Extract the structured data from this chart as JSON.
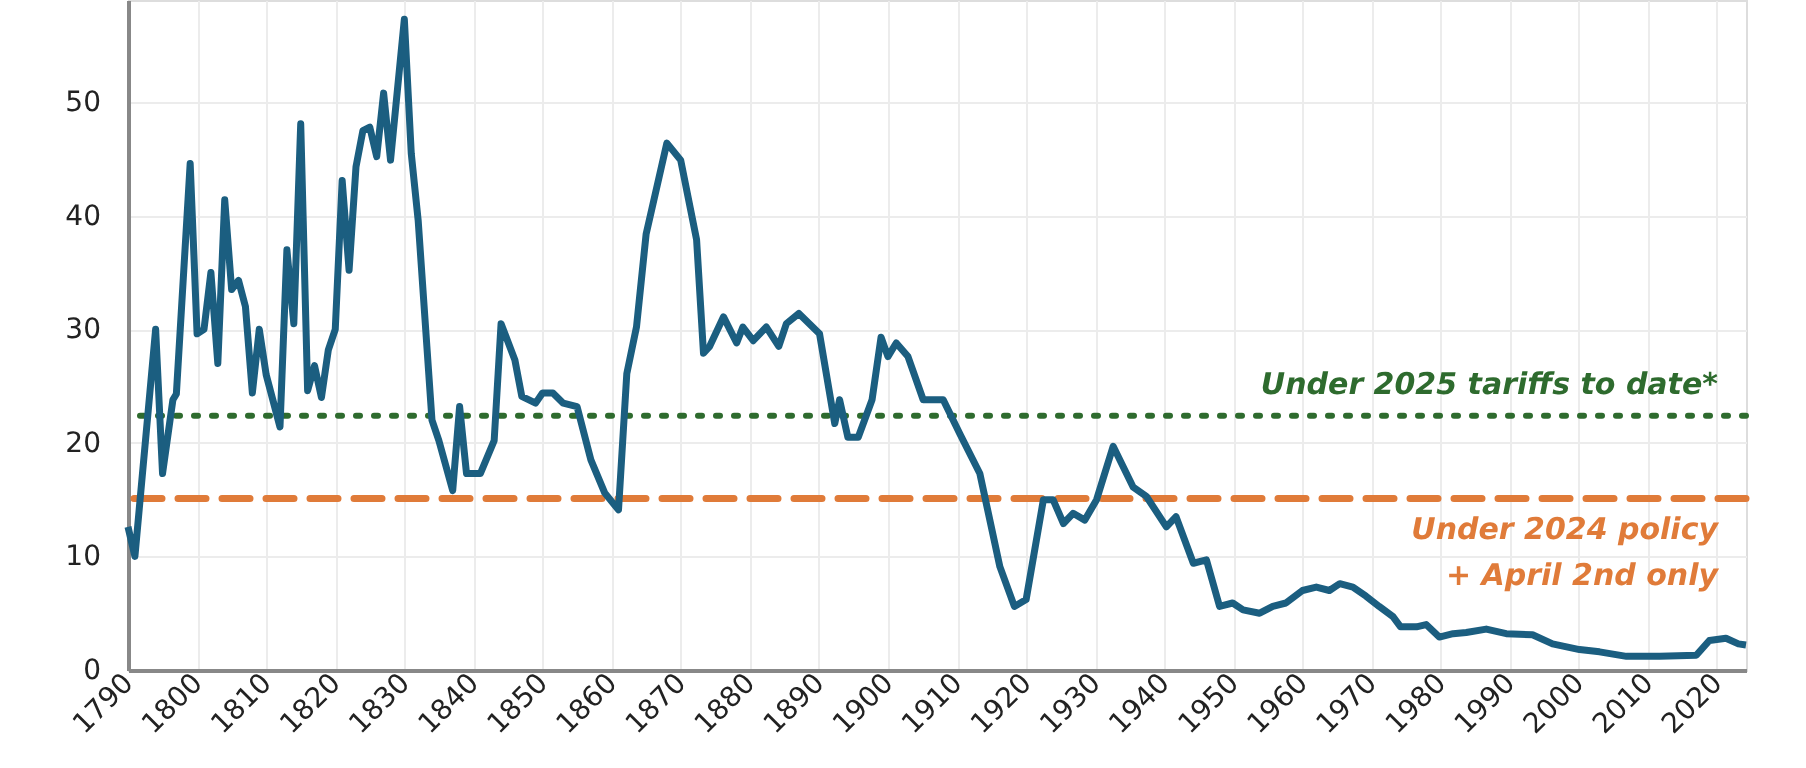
{
  "chart_data": {
    "type": "line",
    "x": [
      1790,
      1791,
      1794,
      1795,
      1796.5,
      1797,
      1799,
      1800,
      1801,
      1802,
      1803,
      1804,
      1805,
      1806,
      1807,
      1808,
      1809,
      1810,
      1812,
      1813,
      1814,
      1815,
      1816,
      1817,
      1818,
      1819,
      1820,
      1821,
      1822,
      1823,
      1824,
      1825,
      1826,
      1827,
      1828,
      1830,
      1831,
      1832,
      1834,
      1835,
      1837,
      1838,
      1839,
      1841,
      1843,
      1844,
      1846,
      1847,
      1849,
      1850,
      1851.5,
      1853,
      1855,
      1857,
      1859,
      1861,
      1862.2,
      1863.6,
      1865,
      1868,
      1870,
      1872.3,
      1873.3,
      1874.2,
      1876.2,
      1878.1,
      1879,
      1880.5,
      1882.4,
      1884.2,
      1885.3,
      1887.1,
      1890.1,
      1892.3,
      1893,
      1894.2,
      1895.7,
      1897.7,
      1899,
      1900,
      1901.2,
      1902.9,
      1905.1,
      1906.3,
      1908,
      1910.4,
      1913.3,
      1916.2,
      1918.3,
      1920,
      1922.5,
      1923.9,
      1925.4,
      1926.8,
      1928.5,
      1930.2,
      1932.6,
      1935.5,
      1937.4,
      1940.3,
      1941.7,
      1944.2,
      1946.1,
      1948,
      1949.9,
      1951.4,
      1953.8,
      1955.7,
      1957.6,
      1960,
      1962,
      1963.9,
      1965.4,
      1967.3,
      1969.2,
      1971.1,
      1973.1,
      1974.2,
      1976.5,
      1977.9,
      1979.8,
      1981.8,
      1983.7,
      1986.6,
      1989.5,
      1993.3,
      1996.2,
      2000.1,
      2003,
      2006.9,
      2011.7,
      2017,
      2018.9,
      2021.3,
      2023.1,
      2024.2
    ],
    "series": [
      {
        "color": "#1b5e80",
        "values": [
          12.6,
          10,
          30,
          17.3,
          23.8,
          24.3,
          44.6,
          29.6,
          30,
          35,
          27,
          41.4,
          33.5,
          34.3,
          32,
          24.4,
          30,
          26,
          21.4,
          37,
          30.5,
          48.1,
          24.6,
          26.8,
          24,
          28.2,
          30,
          43.1,
          35.2,
          44.3,
          47.5,
          47.8,
          45.2,
          50.8,
          44.9,
          57.3,
          45.5,
          39.6,
          22,
          20.2,
          15.8,
          23.2,
          17.3,
          17.3,
          20.2,
          30.5,
          27.3,
          24.1,
          23.5,
          24.4,
          24.4,
          23.5,
          23.2,
          18.5,
          15.6,
          14.1,
          26.1,
          30.2,
          38.4,
          46.4,
          44.9,
          37.9,
          27.9,
          28.5,
          31.1,
          28.8,
          30.2,
          29,
          30.2,
          28.5,
          30.5,
          31.4,
          29.6,
          21.7,
          23.8,
          20.5,
          20.5,
          23.8,
          29.3,
          27.6,
          28.8,
          27.6,
          23.8,
          23.8,
          23.8,
          20.8,
          17.3,
          9.1,
          5.6,
          6.2,
          15,
          15,
          12.9,
          13.8,
          13.2,
          15,
          19.7,
          16.1,
          15.3,
          12.6,
          13.5,
          9.4,
          9.7,
          5.6,
          5.9,
          5.3,
          5,
          5.6,
          5.9,
          7,
          7.3,
          7,
          7.6,
          7.3,
          6.5,
          5.6,
          4.7,
          3.8,
          3.8,
          4,
          2.9,
          3.2,
          3.3,
          3.6,
          3.2,
          3.1,
          2.3,
          1.8,
          1.6,
          1.2,
          1.2,
          1.3,
          2.6,
          2.8,
          2.3,
          2.2
        ]
      }
    ],
    "xlim": [
      1790,
      2024.2
    ],
    "xticks": [
      1790,
      1800,
      1810,
      1820,
      1830,
      1840,
      1850,
      1860,
      1870,
      1880,
      1890,
      1900,
      1910,
      1920,
      1930,
      1940,
      1950,
      1960,
      1970,
      1980,
      1990,
      2000,
      2010,
      2020
    ],
    "ylim": [
      0,
      59
    ],
    "yticks": [
      0,
      10,
      20,
      30,
      40,
      50
    ],
    "grid": true,
    "ref_lines": [
      {
        "axis": "y",
        "value": 22.4,
        "label": "Under 2025 tariffs to date*",
        "color": "#2e6b2e",
        "line_style": "dotted"
      },
      {
        "axis": "y",
        "value": 15.1,
        "label": "Under 2024 policy\n+ April 2nd only",
        "color": "#e07b39",
        "line_style": "dashed"
      }
    ]
  }
}
